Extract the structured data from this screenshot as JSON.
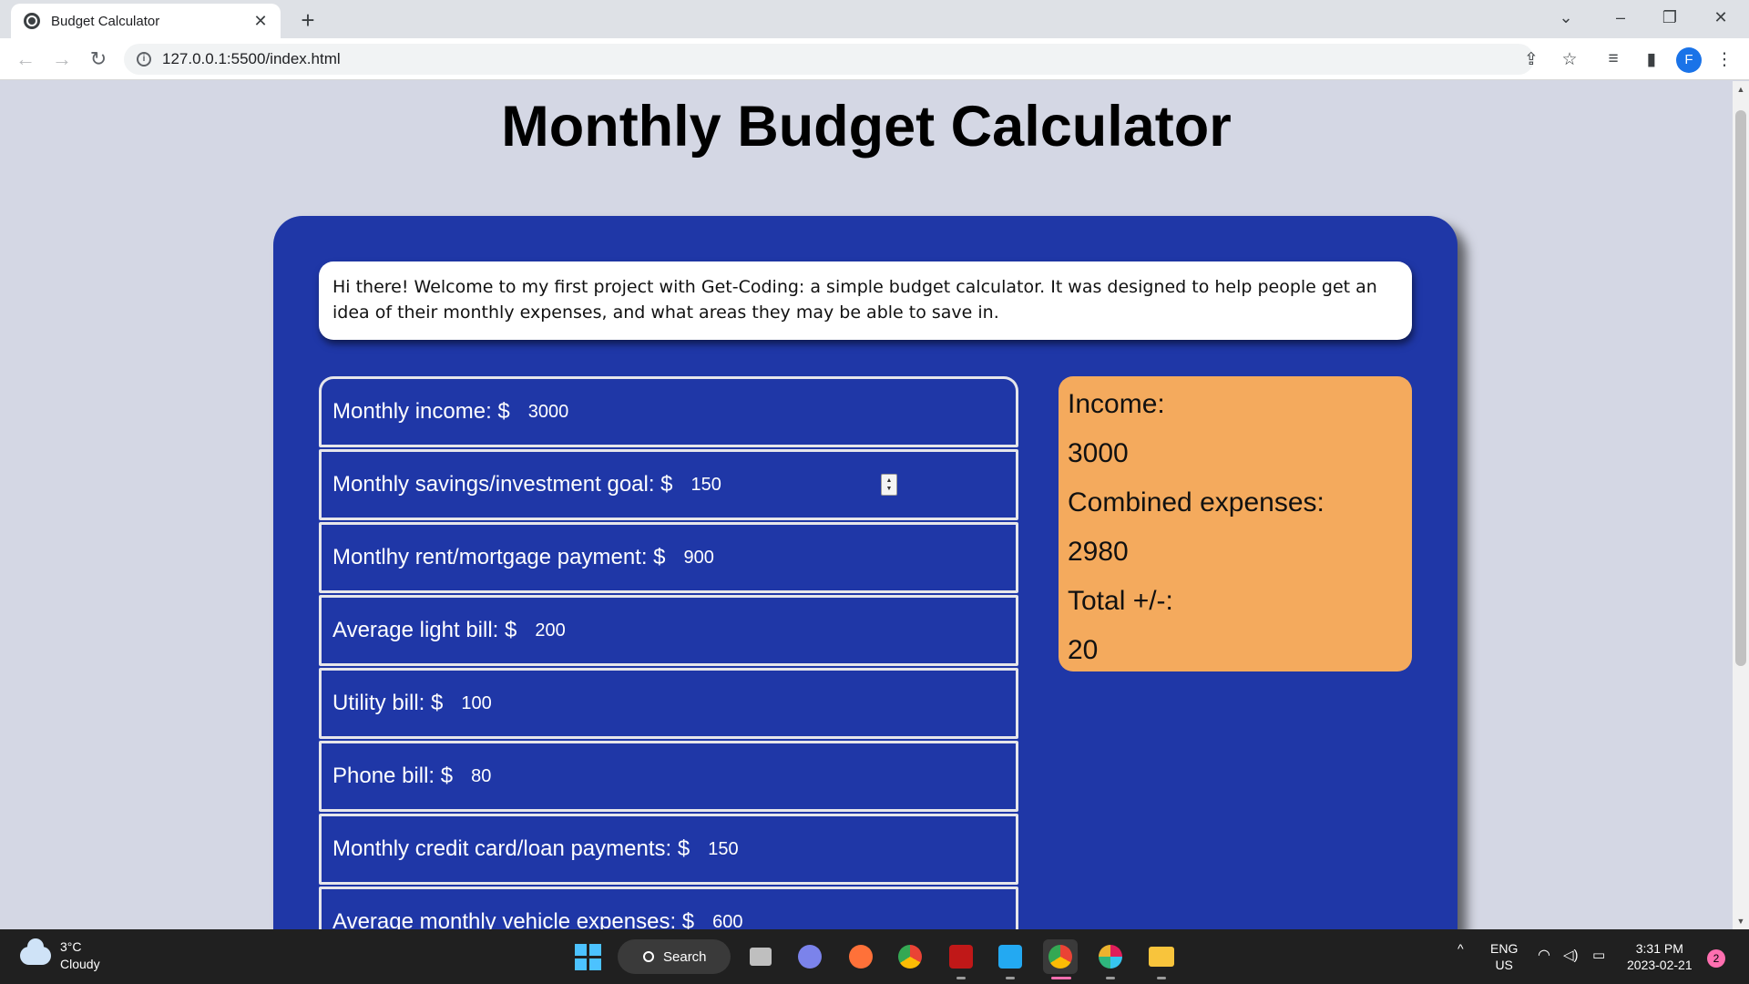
{
  "browser": {
    "tab_title": "Budget Calculator",
    "url": "127.0.0.1:5500/index.html",
    "profile_initial": "F"
  },
  "page": {
    "title": "Monthly Budget Calculator",
    "intro": "Hi there! Welcome to my first project with Get-Coding: a simple budget calculator. It was designed to help people get an idea of their monthly expenses, and what areas they may be able to save in."
  },
  "fields": [
    {
      "label": "Monthly income: $",
      "value": "3000"
    },
    {
      "label": "Monthly savings/investment goal: $",
      "value": "150"
    },
    {
      "label": "Montlhy rent/mortgage payment: $",
      "value": "900"
    },
    {
      "label": "Average light bill: $",
      "value": "200"
    },
    {
      "label": "Utility bill: $",
      "value": "100"
    },
    {
      "label": "Phone bill: $",
      "value": "80"
    },
    {
      "label": "Monthly credit card/loan payments: $",
      "value": "150"
    },
    {
      "label": "Average monthly vehicle expenses: $",
      "value": "600"
    }
  ],
  "summary": {
    "income_label": "Income:",
    "income_value": "3000",
    "expenses_label": "Combined expenses:",
    "expenses_value": "2980",
    "total_label": "Total +/-:",
    "total_value": "20"
  },
  "taskbar": {
    "weather_temp": "3°C",
    "weather_desc": "Cloudy",
    "search_label": "Search",
    "lang_top": "ENG",
    "lang_bottom": "US",
    "time": "3:31 PM",
    "date": "2023-02-21",
    "notification_count": "2"
  },
  "colors": {
    "card": "#1f37a7",
    "summary": "#f4aa5d",
    "page_bg": "#d4d7e4"
  }
}
